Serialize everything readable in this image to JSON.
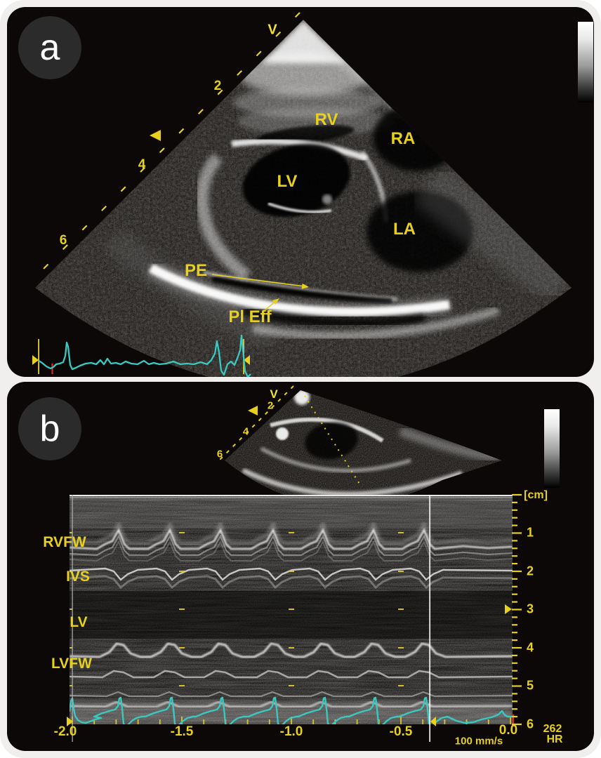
{
  "colors": {
    "annotation_yellow": "#e7d01e",
    "ecg_teal": "#3bc8c0",
    "marker_red": "#dd2a1e",
    "panel_background": "#0b0807",
    "frame_background": "#f1efed"
  },
  "panel_a": {
    "letter": "a",
    "orientation_v_marker": "V",
    "depth_ruler_labels": [
      "2",
      "4",
      "6"
    ],
    "anatomy_labels": {
      "rv": "RV",
      "ra": "RA",
      "lv": "LV",
      "la": "LA"
    },
    "annotations": {
      "pericardial_effusion": "PE",
      "pleural_effusion": "Pl Eff"
    }
  },
  "panel_b": {
    "letter": "b",
    "orientation_v_marker": "V",
    "mini_depth_ruler_labels": [
      "2",
      "4",
      "6"
    ],
    "mmode_structure_labels": [
      "RVFW",
      "IVS",
      "LV",
      "LVFW"
    ],
    "depth_scale": {
      "unit_label": "[cm]",
      "tick_labels": [
        "1",
        "2",
        "3",
        "4",
        "5",
        "6"
      ]
    },
    "time_axis_labels": [
      "-2.0",
      "-1.5",
      "-1.0",
      "-0.5",
      "0.0"
    ],
    "sweep_speed_label": "100 mm/s",
    "heart_rate": {
      "value": "262",
      "unit_label": "HR"
    }
  }
}
